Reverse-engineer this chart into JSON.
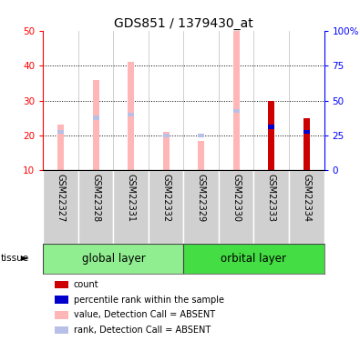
{
  "title": "GDS851 / 1379430_at",
  "samples": [
    "GSM22327",
    "GSM22328",
    "GSM22331",
    "GSM22332",
    "GSM22329",
    "GSM22330",
    "GSM22333",
    "GSM22334"
  ],
  "value_absent": [
    23.0,
    36.0,
    41.0,
    21.0,
    18.5,
    50.0,
    null,
    null
  ],
  "rank_absent": [
    21.0,
    25.0,
    26.0,
    20.0,
    20.0,
    27.0,
    null,
    null
  ],
  "value_present": [
    null,
    null,
    null,
    null,
    null,
    null,
    30.0,
    25.0
  ],
  "percentile_present": [
    null,
    null,
    null,
    null,
    null,
    null,
    22.5,
    21.0
  ],
  "ylim_left": [
    10,
    50
  ],
  "yticks_left": [
    10,
    20,
    30,
    40,
    50
  ],
  "yticks_right": [
    0,
    25,
    50,
    75,
    100
  ],
  "absent_value_color": "#ffb6b6",
  "absent_rank_color": "#b8c0e8",
  "present_value_color": "#cc0000",
  "present_rank_color": "#0000cc",
  "global_layer_color": "#90ee90",
  "orbital_layer_color": "#44dd44",
  "label_bg_color": "#d0d0d0",
  "legend_items": [
    {
      "color": "#cc0000",
      "label": "count"
    },
    {
      "color": "#0000cc",
      "label": "percentile rank within the sample"
    },
    {
      "color": "#ffb6b6",
      "label": "value, Detection Call = ABSENT"
    },
    {
      "color": "#b8c0e8",
      "label": "rank, Detection Call = ABSENT"
    }
  ]
}
